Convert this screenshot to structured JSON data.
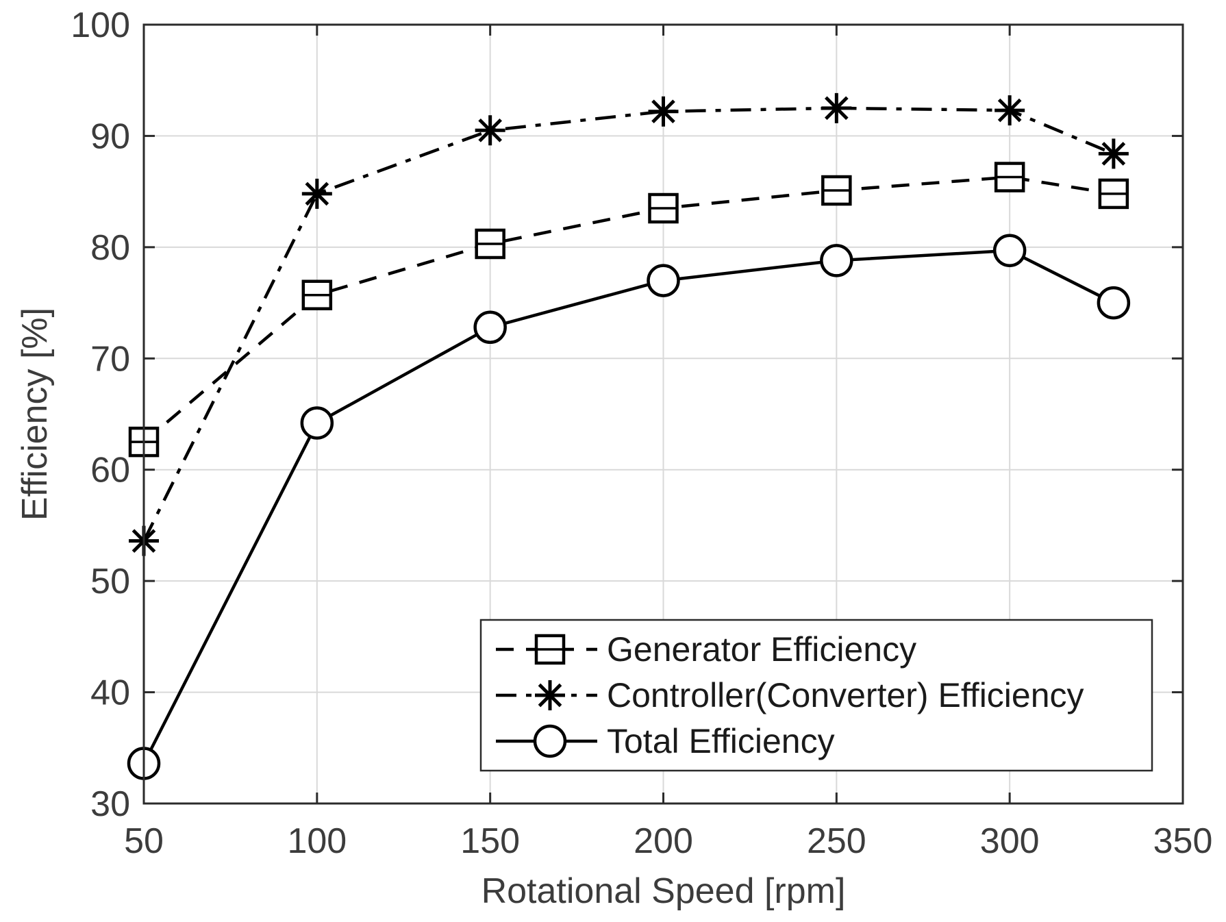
{
  "chart_data": {
    "type": "line",
    "title": "",
    "xlabel": "Rotational Speed [rpm]",
    "ylabel": "Efficiency [%]",
    "xlim": [
      50,
      350
    ],
    "ylim": [
      30,
      100
    ],
    "xticks": [
      50,
      100,
      150,
      200,
      250,
      300,
      350
    ],
    "yticks": [
      30,
      40,
      50,
      60,
      70,
      80,
      90,
      100
    ],
    "xtick_labels": [
      "50",
      "100",
      "150",
      "200",
      "250",
      "300",
      "350"
    ],
    "ytick_labels": [
      "30",
      "40",
      "50",
      "60",
      "70",
      "80",
      "90",
      "100"
    ],
    "grid": true,
    "legend_position": "bottom-right",
    "series": [
      {
        "name": "Generator Efficiency",
        "style": "dashed",
        "marker": "square",
        "color": "#000000",
        "x": [
          50,
          100,
          150,
          200,
          250,
          300,
          330
        ],
        "y": [
          62.5,
          75.7,
          80.3,
          83.5,
          85.1,
          86.3,
          84.8
        ]
      },
      {
        "name": "Controller(Converter) Efficiency",
        "style": "dashdot",
        "marker": "asterisk",
        "color": "#000000",
        "x": [
          50,
          100,
          150,
          200,
          250,
          300,
          330
        ],
        "y": [
          53.6,
          84.8,
          90.5,
          92.2,
          92.5,
          92.3,
          88.4
        ]
      },
      {
        "name": "Total Efficiency",
        "style": "solid",
        "marker": "circle",
        "color": "#000000",
        "x": [
          50,
          100,
          150,
          200,
          250,
          300,
          330
        ],
        "y": [
          33.6,
          64.2,
          72.8,
          77.0,
          78.8,
          79.7,
          75.0
        ]
      }
    ]
  }
}
